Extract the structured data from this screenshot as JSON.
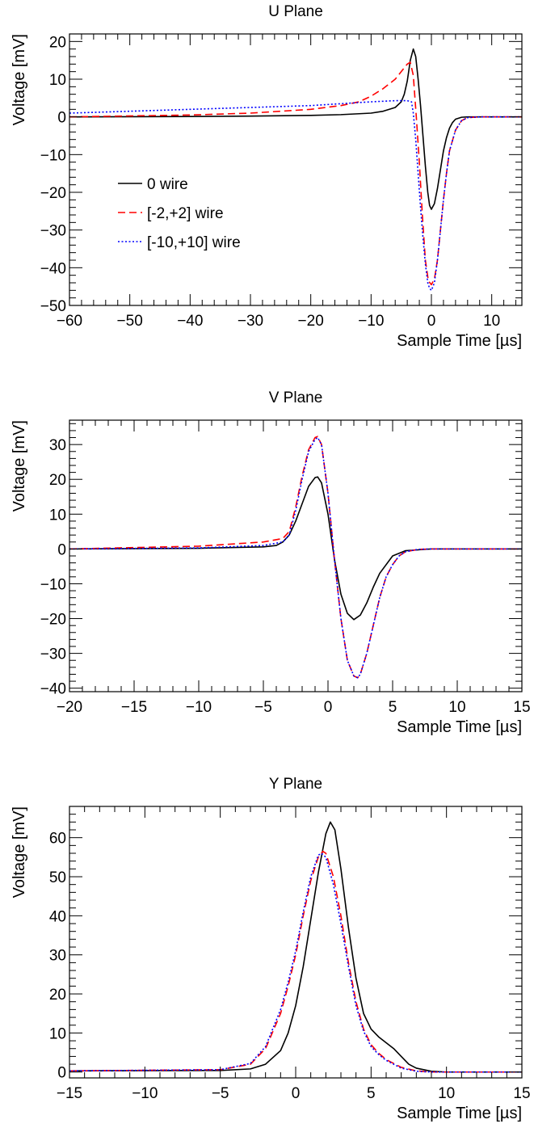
{
  "chart_data": [
    {
      "type": "line",
      "title": "U Plane",
      "xlabel": "Sample Time [µs]",
      "ylabel": "Voltage [mV]",
      "xlim": [
        -60,
        15
      ],
      "ylim": [
        -50,
        22
      ],
      "xticks": [
        -60,
        -50,
        -40,
        -30,
        -20,
        -10,
        0,
        10
      ],
      "yticks": [
        -50,
        -40,
        -30,
        -20,
        -10,
        0,
        10,
        20
      ],
      "xtick_labels": [
        "−60",
        "−50",
        "−40",
        "−30",
        "−20",
        "−10",
        "0",
        "10"
      ],
      "ytick_labels": [
        "−50",
        "−40",
        "−30",
        "−20",
        "−10",
        "0",
        "10",
        "20"
      ],
      "grid": false,
      "legend": "middle-left",
      "series": [
        {
          "name": "0 wire",
          "color": "#000000",
          "style": "solid",
          "x": [
            -60,
            -40,
            -30,
            -20,
            -15,
            -10,
            -8,
            -6,
            -5,
            -4.5,
            -4,
            -3.5,
            -3,
            -2.6,
            -2.2,
            -1.8,
            -1.4,
            -1.0,
            -0.6,
            -0.3,
            0,
            0.5,
            1.0,
            1.5,
            2.0,
            2.5,
            3.0,
            3.5,
            4.0,
            5.0,
            6.0,
            8.0,
            15
          ],
          "y": [
            0,
            0.1,
            0.2,
            0.4,
            0.6,
            1.0,
            1.5,
            2.5,
            4.0,
            6.0,
            9.5,
            15.0,
            18.0,
            16.0,
            10.0,
            3.0,
            -5.0,
            -13.0,
            -20.0,
            -23.5,
            -24.5,
            -23.0,
            -19.0,
            -14.0,
            -9.0,
            -5.5,
            -3.0,
            -1.5,
            -0.6,
            -0.1,
            0,
            0,
            0
          ]
        },
        {
          "name": "[-2,+2] wire",
          "color": "#ff0000",
          "style": "dashed",
          "x": [
            -60,
            -40,
            -30,
            -20,
            -15,
            -12,
            -10,
            -8,
            -6,
            -5,
            -4,
            -3.5,
            -3,
            -2.5,
            -2,
            -1.5,
            -1.0,
            -0.5,
            0,
            0.5,
            1.0,
            1.5,
            2.0,
            2.5,
            3.0,
            4.0,
            5.0,
            6.0,
            8.0,
            15
          ],
          "y": [
            0,
            0.5,
            1.0,
            2.0,
            3.0,
            4.0,
            5.5,
            7.5,
            10.0,
            12.0,
            14.0,
            14.5,
            11.0,
            0.0,
            -12.0,
            -26.0,
            -38.0,
            -43.5,
            -44.5,
            -43.0,
            -38.0,
            -30.0,
            -22.0,
            -15.0,
            -9.0,
            -3.5,
            -1.0,
            -0.2,
            0,
            0
          ]
        },
        {
          "name": "[-10,+10] wire",
          "color": "#0000ff",
          "style": "dotted",
          "x": [
            -60,
            -40,
            -30,
            -20,
            -15,
            -10,
            -6,
            -4,
            -3.3,
            -3.0,
            -2.6,
            -2.2,
            -1.8,
            -1.4,
            -1.0,
            -0.6,
            -0.3,
            0,
            0.5,
            1.0,
            1.5,
            2.0,
            2.5,
            3.0,
            4.0,
            5.0,
            6.0,
            8.0,
            15
          ],
          "y": [
            1.0,
            2.0,
            2.5,
            3.0,
            3.5,
            4.0,
            4.3,
            4.3,
            4.0,
            1.0,
            -6.0,
            -15.0,
            -24.0,
            -32.0,
            -39.0,
            -44.0,
            -45.5,
            -46.0,
            -44.0,
            -38.0,
            -30.0,
            -22.0,
            -15.0,
            -9.0,
            -3.5,
            -1.0,
            -0.2,
            0,
            0
          ]
        }
      ]
    },
    {
      "type": "line",
      "title": "V Plane",
      "xlabel": "Sample Time [µs]",
      "ylabel": "Voltage [mV]",
      "xlim": [
        -20,
        15
      ],
      "ylim": [
        -41,
        37
      ],
      "xticks": [
        -20,
        -15,
        -10,
        -5,
        0,
        5,
        10,
        15
      ],
      "yticks": [
        -40,
        -30,
        -20,
        -10,
        0,
        10,
        20,
        30
      ],
      "xtick_labels": [
        "−20",
        "−15",
        "−10",
        "−5",
        "0",
        "5",
        "10",
        "15"
      ],
      "ytick_labels": [
        "−40",
        "−30",
        "−20",
        "−10",
        "0",
        "10",
        "20",
        "30"
      ],
      "grid": false,
      "series": [
        {
          "name": "0 wire",
          "color": "#000000",
          "style": "solid",
          "x": [
            -20,
            -10,
            -5,
            -4,
            -3.5,
            -3,
            -2.5,
            -2,
            -1.5,
            -1.0,
            -0.8,
            -0.5,
            0,
            0.5,
            1.0,
            1.5,
            2.0,
            2.5,
            3.0,
            3.5,
            4.0,
            5.0,
            6.0,
            8.0,
            10,
            15
          ],
          "y": [
            0,
            0.2,
            0.6,
            1.0,
            2.0,
            4.0,
            8.0,
            13.0,
            18.0,
            20.5,
            20.7,
            19.0,
            10.0,
            -3.0,
            -13.0,
            -18.5,
            -20.3,
            -19.0,
            -15.5,
            -11.0,
            -7.0,
            -2.0,
            -0.5,
            0,
            0,
            0
          ]
        },
        {
          "name": "[-2,+2] wire",
          "color": "#ff0000",
          "style": "dashed",
          "x": [
            -20,
            -10,
            -5,
            -3.5,
            -3,
            -2.5,
            -2,
            -1.5,
            -1.0,
            -0.8,
            -0.5,
            0,
            0.5,
            1.0,
            1.5,
            2.0,
            2.3,
            2.5,
            3.0,
            3.5,
            4.0,
            4.5,
            5.0,
            5.5,
            6.0,
            7.0,
            8.0,
            10,
            15
          ],
          "y": [
            0,
            0.8,
            2.0,
            3.0,
            5.0,
            12.0,
            21.0,
            28.5,
            32.0,
            32.3,
            30.0,
            16.0,
            -3.0,
            -20.0,
            -32.0,
            -36.5,
            -37.0,
            -36.0,
            -30.0,
            -22.0,
            -14.0,
            -8.0,
            -4.5,
            -2.0,
            -0.8,
            -0.1,
            0,
            0,
            0
          ]
        },
        {
          "name": "[-10,+10] wire",
          "color": "#0000ff",
          "style": "dotted",
          "x": [
            -20,
            -10,
            -5,
            -3.5,
            -3,
            -2.5,
            -2,
            -1.5,
            -1.0,
            -0.8,
            -0.5,
            0,
            0.5,
            1.0,
            1.5,
            2.0,
            2.3,
            2.5,
            3.0,
            3.5,
            4.0,
            4.5,
            5.0,
            5.5,
            6.0,
            7.0,
            8.0,
            10,
            15
          ],
          "y": [
            0,
            0.3,
            1.0,
            2.0,
            4.0,
            11.0,
            20.0,
            28.0,
            31.5,
            32.0,
            30.0,
            16.0,
            -3.0,
            -20.0,
            -32.0,
            -36.5,
            -37.0,
            -36.0,
            -30.0,
            -22.0,
            -14.0,
            -8.0,
            -4.5,
            -2.0,
            -0.8,
            -0.1,
            0,
            0,
            0
          ]
        }
      ]
    },
    {
      "type": "line",
      "title": "Y Plane",
      "xlabel": "Sample Time [µs]",
      "ylabel": "Voltage [mV]",
      "xlim": [
        -15,
        15
      ],
      "ylim": [
        -1.5,
        68
      ],
      "xticks": [
        -15,
        -10,
        -5,
        0,
        5,
        10,
        15
      ],
      "yticks": [
        0,
        10,
        20,
        30,
        40,
        50,
        60
      ],
      "xtick_labels": [
        "−15",
        "−10",
        "−5",
        "0",
        "5",
        "10",
        "15"
      ],
      "ytick_labels": [
        "0",
        "10",
        "20",
        "30",
        "40",
        "50",
        "60"
      ],
      "grid": false,
      "series": [
        {
          "name": "0 wire",
          "color": "#000000",
          "style": "solid",
          "x": [
            -15,
            -5,
            -3,
            -2,
            -1,
            -0.5,
            0,
            0.5,
            1.0,
            1.5,
            2.0,
            2.3,
            2.6,
            3.0,
            3.5,
            4.0,
            4.5,
            5.0,
            5.5,
            6.0,
            6.5,
            7.0,
            7.5,
            8.0,
            9.0,
            10,
            15
          ],
          "y": [
            0.3,
            0.4,
            0.8,
            2.0,
            5.5,
            10.0,
            17.0,
            27.0,
            39.0,
            51.0,
            61.0,
            64.0,
            62.0,
            52.0,
            37.0,
            24.0,
            15.0,
            11.0,
            9.0,
            7.5,
            6.0,
            4.0,
            2.0,
            1.0,
            0.2,
            0,
            0
          ]
        },
        {
          "name": "[-2,+2] wire",
          "color": "#ff0000",
          "style": "dashed",
          "x": [
            -15,
            -5,
            -3,
            -2,
            -1,
            -0.5,
            0,
            0.5,
            1.0,
            1.5,
            1.8,
            2.0,
            2.5,
            3.0,
            3.5,
            4.0,
            4.5,
            5.0,
            5.5,
            6.0,
            7.0,
            8.0,
            9.0,
            10,
            15
          ],
          "y": [
            0.3,
            0.6,
            2.0,
            6.0,
            15.0,
            22.0,
            30.0,
            40.0,
            49.0,
            55.0,
            56.5,
            56.0,
            50.0,
            40.0,
            28.0,
            18.0,
            11.0,
            7.0,
            4.8,
            3.2,
            1.2,
            0.3,
            0,
            0,
            0
          ]
        },
        {
          "name": "[-10,+10] wire",
          "color": "#0000ff",
          "style": "dotted",
          "x": [
            -15,
            -5,
            -3,
            -2,
            -1,
            -0.5,
            0,
            0.5,
            1.0,
            1.5,
            1.7,
            2.0,
            2.5,
            3.0,
            3.5,
            4.0,
            4.5,
            5.0,
            5.5,
            6.0,
            7.0,
            8.0,
            9.0,
            10,
            15
          ],
          "y": [
            0.3,
            0.6,
            2.2,
            6.5,
            16.0,
            23.0,
            31.0,
            41.0,
            50.0,
            55.5,
            56.0,
            55.0,
            48.0,
            38.0,
            27.0,
            17.0,
            10.5,
            6.5,
            4.5,
            3.0,
            1.0,
            0.2,
            0,
            0,
            0
          ]
        }
      ]
    }
  ]
}
